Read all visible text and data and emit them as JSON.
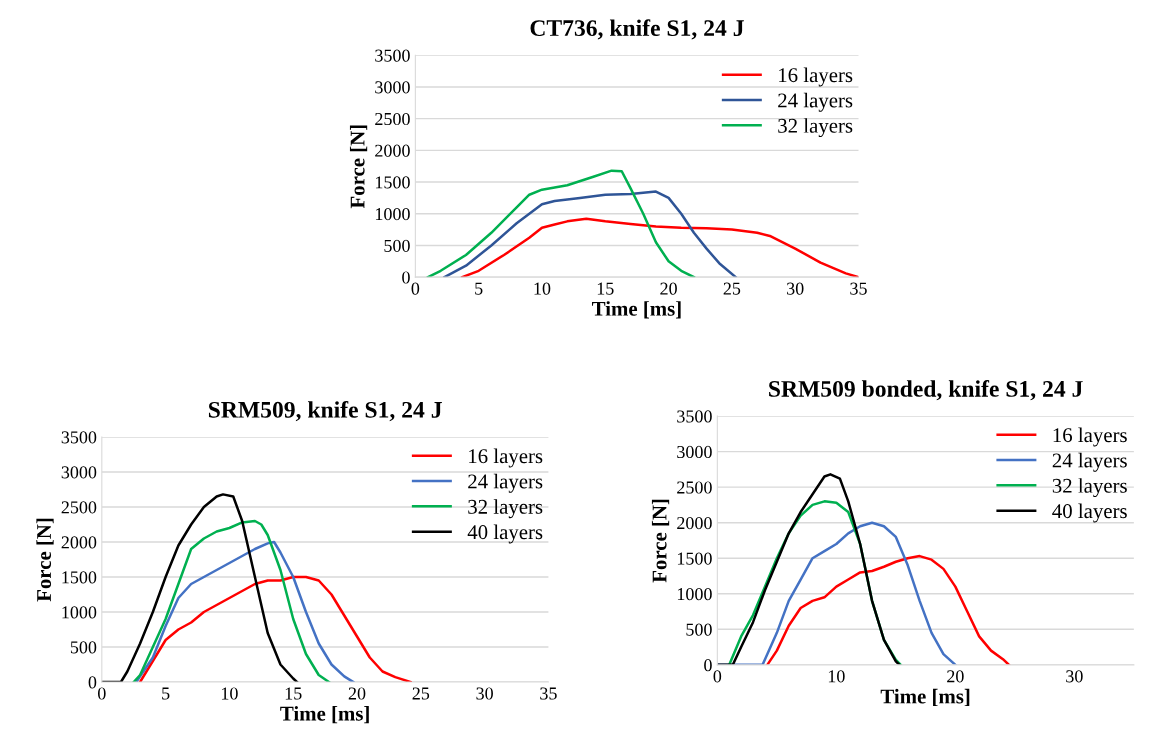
{
  "chart_data": [
    {
      "type": "line",
      "title": "CT736, knife S1, 24 J",
      "xlabel": "Time [ms]",
      "ylabel": "Force [N]",
      "xlim": [
        0,
        35
      ],
      "xticks": [
        0,
        5,
        10,
        15,
        20,
        25,
        30,
        35
      ],
      "ylim": [
        0,
        3500
      ],
      "yticks": [
        0,
        500,
        1000,
        1500,
        2000,
        2500,
        3000,
        3500
      ],
      "grid": "y",
      "legend": "top right",
      "series": [
        {
          "name": "16 layers",
          "color": "#ff0000",
          "x": [
            3.7,
            5,
            7,
            9,
            10,
            11,
            12,
            13.5,
            15,
            17,
            19,
            21,
            23,
            25,
            27,
            28,
            30,
            32,
            34,
            35
          ],
          "values": [
            0,
            100,
            350,
            620,
            780,
            830,
            880,
            920,
            880,
            840,
            800,
            780,
            770,
            750,
            700,
            650,
            450,
            230,
            60,
            0
          ]
        },
        {
          "name": "24 layers",
          "color": "#2f5597",
          "x": [
            2.3,
            4,
            6,
            8,
            9,
            10,
            11,
            13,
            15,
            17,
            18,
            19,
            20,
            21,
            22,
            23,
            24,
            25.3
          ],
          "values": [
            0,
            180,
            500,
            850,
            1000,
            1150,
            1200,
            1250,
            1300,
            1310,
            1330,
            1350,
            1250,
            1000,
            700,
            450,
            220,
            0
          ]
        },
        {
          "name": "32 layers",
          "color": "#00b050",
          "x": [
            1,
            2,
            4,
            6,
            8,
            9,
            10,
            12,
            14,
            15.5,
            16.3,
            17,
            18,
            19,
            20,
            21,
            22
          ],
          "values": [
            0,
            100,
            350,
            700,
            1100,
            1300,
            1380,
            1450,
            1580,
            1680,
            1670,
            1400,
            1000,
            550,
            250,
            100,
            0
          ]
        }
      ]
    },
    {
      "type": "line",
      "title": "SRM509, knife S1, 24 J",
      "xlabel": "Time [ms]",
      "ylabel": "Force [N]",
      "xlim": [
        0,
        35
      ],
      "xticks": [
        0,
        5,
        10,
        15,
        20,
        25,
        30,
        35
      ],
      "ylim": [
        0,
        3500
      ],
      "yticks": [
        0,
        500,
        1000,
        1500,
        2000,
        2500,
        3000,
        3500
      ],
      "grid": "y",
      "legend": "top right",
      "series": [
        {
          "name": "16 layers",
          "color": "#ff0000",
          "x": [
            3,
            4,
            5,
            6,
            7,
            8,
            9,
            10,
            11,
            12,
            13,
            14,
            15,
            16,
            17,
            18,
            19,
            20,
            21,
            22,
            23,
            24.2
          ],
          "values": [
            0,
            300,
            600,
            750,
            850,
            1000,
            1100,
            1200,
            1300,
            1400,
            1450,
            1450,
            1500,
            1500,
            1450,
            1250,
            950,
            650,
            350,
            150,
            70,
            0
          ]
        },
        {
          "name": "24 layers",
          "color": "#4472c4",
          "x": [
            2.7,
            4,
            5,
            6,
            7,
            8,
            9,
            10,
            11,
            12,
            13,
            13.5,
            14,
            15,
            16,
            17,
            18,
            19,
            19.7
          ],
          "values": [
            0,
            350,
            800,
            1200,
            1400,
            1500,
            1600,
            1700,
            1800,
            1900,
            1980,
            2000,
            1850,
            1500,
            1000,
            550,
            250,
            80,
            0
          ]
        },
        {
          "name": "32 layers",
          "color": "#00b050",
          "x": [
            2.5,
            3,
            4,
            5,
            6,
            7,
            8,
            9,
            10,
            11,
            12,
            12.5,
            13,
            14,
            15,
            16,
            17,
            17.8
          ],
          "values": [
            0,
            100,
            500,
            900,
            1400,
            1900,
            2050,
            2150,
            2200,
            2280,
            2300,
            2250,
            2100,
            1600,
            900,
            400,
            100,
            0
          ]
        },
        {
          "name": "40 layers",
          "color": "#000000",
          "x": [
            0,
            1.5,
            2,
            3,
            4,
            5,
            6,
            7,
            8,
            9,
            9.5,
            10.3,
            11,
            12,
            13,
            14,
            15,
            15.3
          ],
          "values": [
            0,
            0,
            150,
            550,
            1000,
            1500,
            1950,
            2250,
            2500,
            2650,
            2680,
            2650,
            2300,
            1500,
            700,
            250,
            50,
            0
          ]
        }
      ]
    },
    {
      "type": "line",
      "title": "SRM509 bonded, knife S1, 24 J",
      "xlabel": "Time [ms]",
      "ylabel": "Force [N]",
      "xlim": [
        0,
        35
      ],
      "xticks": [
        0,
        10,
        20,
        30
      ],
      "ylim": [
        0,
        3500
      ],
      "yticks": [
        0,
        500,
        1000,
        1500,
        2000,
        2500,
        3000,
        3500
      ],
      "grid": "y",
      "legend": "top right",
      "series": [
        {
          "name": "16 layers",
          "color": "#ff0000",
          "x": [
            4.2,
            5,
            6,
            7,
            8,
            9,
            10,
            11,
            12,
            13,
            14,
            15,
            16,
            17,
            18,
            19,
            20,
            21,
            22,
            23,
            24,
            24.5
          ],
          "values": [
            0,
            200,
            550,
            800,
            900,
            950,
            1100,
            1200,
            1300,
            1320,
            1380,
            1450,
            1500,
            1530,
            1480,
            1350,
            1100,
            750,
            400,
            200,
            80,
            0
          ]
        },
        {
          "name": "24 layers",
          "color": "#4472c4",
          "x": [
            0,
            3.8,
            5,
            6,
            7,
            8,
            9,
            10,
            11,
            12,
            13,
            14,
            15,
            16,
            17,
            18,
            19,
            20
          ],
          "values": [
            0,
            0,
            450,
            900,
            1200,
            1500,
            1600,
            1700,
            1850,
            1950,
            2000,
            1950,
            1800,
            1400,
            900,
            450,
            150,
            0
          ]
        },
        {
          "name": "32 layers",
          "color": "#00b050",
          "x": [
            1,
            2,
            3,
            4,
            5,
            6,
            7,
            8,
            9,
            10,
            11,
            12,
            13,
            14,
            15,
            15.4
          ],
          "values": [
            0,
            400,
            700,
            1100,
            1500,
            1850,
            2100,
            2250,
            2300,
            2280,
            2150,
            1700,
            900,
            350,
            70,
            0
          ]
        },
        {
          "name": "40 layers",
          "color": "#000000",
          "x": [
            0,
            1.3,
            2,
            3,
            4,
            5,
            6,
            7,
            8,
            9,
            9.5,
            10.3,
            11,
            12,
            13,
            14,
            15,
            15.3
          ],
          "values": [
            0,
            0,
            250,
            600,
            1050,
            1450,
            1850,
            2150,
            2400,
            2650,
            2680,
            2620,
            2300,
            1700,
            900,
            350,
            50,
            0
          ]
        }
      ]
    }
  ]
}
